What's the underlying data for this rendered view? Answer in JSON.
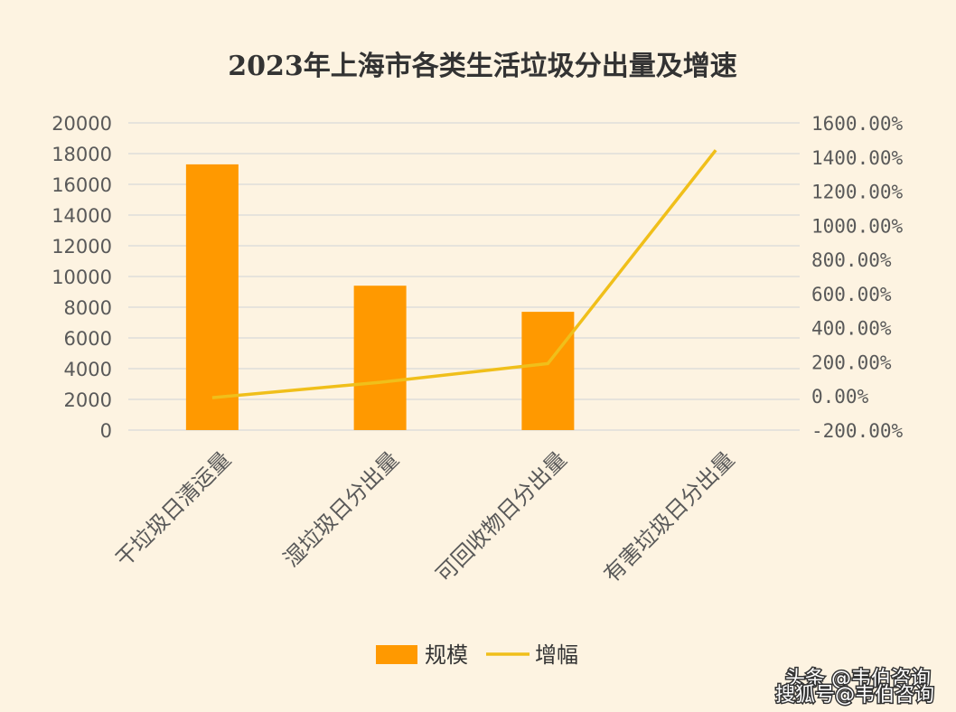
{
  "chart_data": {
    "type": "bar",
    "title": "2023年上海市各类生活垃圾分出量及增速",
    "categories": [
      "干垃圾日清运量",
      "湿垃圾日分出量",
      "可回收物日分出量",
      "有害垃圾日分出量"
    ],
    "series": [
      {
        "name": "规模",
        "type": "bar",
        "axis": "left",
        "values": [
          17300,
          9400,
          7700,
          0
        ]
      },
      {
        "name": "增幅",
        "type": "line",
        "axis": "right",
        "values": [
          -10,
          80,
          190,
          1440
        ]
      }
    ],
    "y_left": {
      "min": 0,
      "max": 20000,
      "step": 2000,
      "ticks": [
        "0",
        "2000",
        "4000",
        "6000",
        "8000",
        "10000",
        "12000",
        "14000",
        "16000",
        "18000",
        "20000"
      ]
    },
    "y_right": {
      "min": -200,
      "max": 1600,
      "step": 200,
      "ticks": [
        "-200.00%",
        "0.00%",
        "200.00%",
        "400.00%",
        "600.00%",
        "800.00%",
        "1000.00%",
        "1200.00%",
        "1400.00%",
        "1600.00%"
      ]
    },
    "grid": true,
    "legend": "bottom",
    "colors": {
      "bar": "#ff9900",
      "line": "#f0bf1a",
      "grid": "#d9d9d9"
    }
  },
  "watermark": {
    "line1": "头条 @韦伯咨询",
    "line2": "搜狐号@韦伯咨询"
  }
}
